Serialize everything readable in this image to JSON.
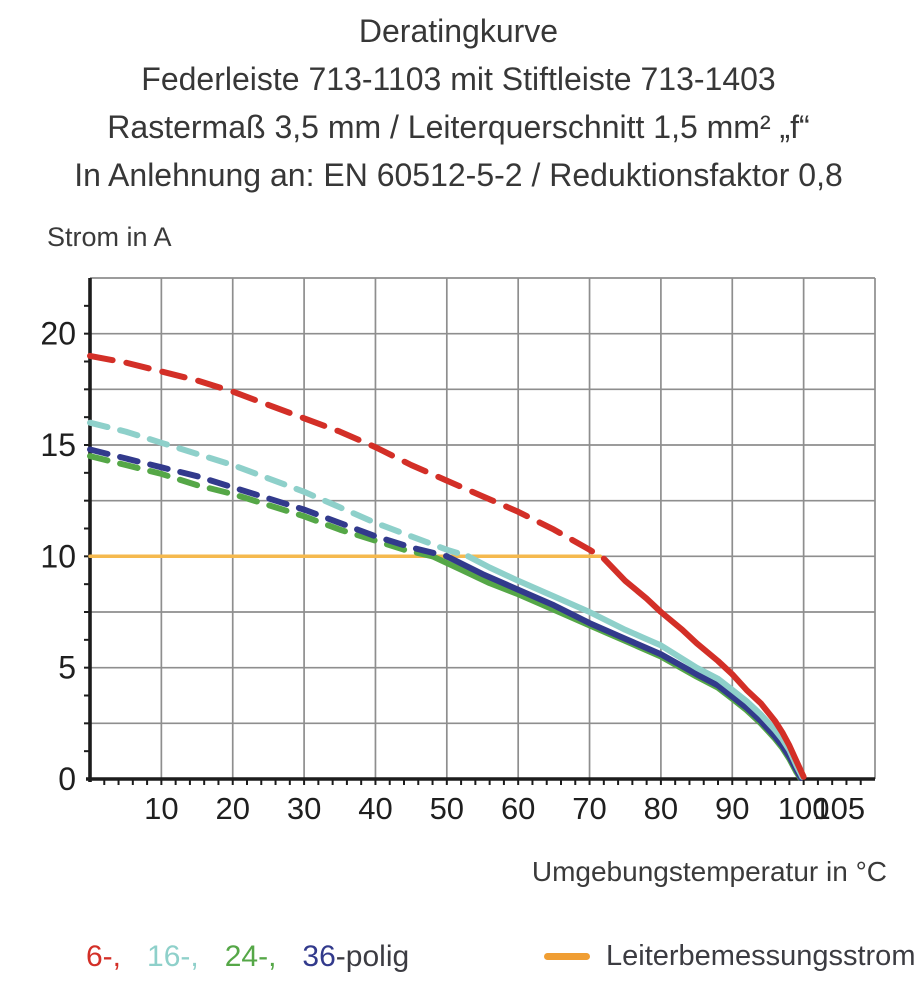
{
  "header": {
    "lines": [
      "Deratingkurve",
      "Federleiste 713-1103 mit Stiftleiste 713-1403",
      "Rastermaß 3,5 mm / Leiterquerschnitt 1,5 mm² „f“",
      "In Anlehnung an: EN 60512-5-2 / Reduktionsfaktor 0,8"
    ]
  },
  "chart_data": {
    "type": "line",
    "title": "Deratingkurve Federleiste 713-1103 mit Stiftleiste 713-1403",
    "xlabel": "Umgebungstemperatur in °C",
    "ylabel": "Strom in A",
    "xlim": [
      0,
      110
    ],
    "ylim": [
      0,
      22.5
    ],
    "grid": "on",
    "colors": {
      "grid": "#8e8e8e",
      "axis": "#1c1c1c",
      "text": "#1f1f1f"
    },
    "axes": {
      "x": {
        "ticks": [
          10,
          20,
          30,
          40,
          50,
          60,
          70,
          80,
          90,
          100,
          105
        ],
        "gridlines": [
          10,
          20,
          30,
          40,
          50,
          60,
          70,
          80,
          90,
          100
        ],
        "minor_step": 2
      },
      "y": {
        "ticks": [
          0,
          5,
          10,
          15,
          20
        ],
        "gridlines": [
          2.5,
          5,
          7.5,
          10,
          12.5,
          15,
          17.5,
          20,
          22.5
        ],
        "minor_step": 1.25
      }
    },
    "series": [
      {
        "name": "Leiterbemessungsstrom",
        "color": "#f5b94e",
        "width": 3.5,
        "dash": "",
        "dashed": [],
        "solid": [
          [
            0,
            10
          ],
          [
            71.5,
            10
          ]
        ]
      },
      {
        "name": "24-polig",
        "color": "#55a747",
        "width": 6,
        "dash": "18 13",
        "dashed": [
          [
            0,
            14.5
          ],
          [
            5,
            14.1
          ],
          [
            10,
            13.7
          ],
          [
            15,
            13.2
          ],
          [
            20,
            12.8
          ],
          [
            25,
            12.3
          ],
          [
            30,
            11.8
          ],
          [
            35,
            11.2
          ],
          [
            40,
            10.7
          ],
          [
            44,
            10.3
          ],
          [
            48,
            10
          ]
        ],
        "solid": [
          [
            48,
            10
          ],
          [
            52,
            9.4
          ],
          [
            56,
            8.8
          ],
          [
            60,
            8.3
          ],
          [
            65,
            7.6
          ],
          [
            70,
            6.9
          ],
          [
            75,
            6.2
          ],
          [
            80,
            5.5
          ],
          [
            85,
            4.6
          ],
          [
            88,
            4.1
          ],
          [
            90,
            3.6
          ],
          [
            92,
            3.1
          ],
          [
            94,
            2.5
          ],
          [
            96,
            1.8
          ],
          [
            97,
            1.4
          ],
          [
            98,
            0.9
          ],
          [
            99,
            0.3
          ],
          [
            99.5,
            0.05
          ]
        ]
      },
      {
        "name": "36-polig",
        "color": "#323a8c",
        "width": 6,
        "dash": "18 13",
        "dashed": [
          [
            0,
            14.8
          ],
          [
            5,
            14.4
          ],
          [
            10,
            14
          ],
          [
            15,
            13.6
          ],
          [
            20,
            13.1
          ],
          [
            25,
            12.6
          ],
          [
            30,
            12.1
          ],
          [
            35,
            11.5
          ],
          [
            40,
            10.9
          ],
          [
            45,
            10.4
          ],
          [
            50,
            10
          ]
        ],
        "solid": [
          [
            50,
            10
          ],
          [
            55,
            9.2
          ],
          [
            60,
            8.5
          ],
          [
            65,
            7.8
          ],
          [
            70,
            7
          ],
          [
            75,
            6.3
          ],
          [
            80,
            5.6
          ],
          [
            85,
            4.7
          ],
          [
            88,
            4.2
          ],
          [
            90,
            3.7
          ],
          [
            92,
            3.2
          ],
          [
            94,
            2.6
          ],
          [
            96,
            1.9
          ],
          [
            97,
            1.5
          ],
          [
            98,
            1
          ],
          [
            99,
            0.4
          ],
          [
            99.6,
            0.05
          ]
        ]
      },
      {
        "name": "16-polig",
        "color": "#8ed0ca",
        "width": 6,
        "dash": "18 13",
        "dashed": [
          [
            0,
            16
          ],
          [
            5,
            15.6
          ],
          [
            10,
            15.1
          ],
          [
            15,
            14.6
          ],
          [
            20,
            14.1
          ],
          [
            25,
            13.5
          ],
          [
            30,
            12.9
          ],
          [
            35,
            12.2
          ],
          [
            40,
            11.5
          ],
          [
            45,
            10.9
          ],
          [
            50,
            10.3
          ],
          [
            53,
            10
          ]
        ],
        "solid": [
          [
            53,
            10
          ],
          [
            56,
            9.5
          ],
          [
            60,
            8.9
          ],
          [
            65,
            8.2
          ],
          [
            70,
            7.5
          ],
          [
            75,
            6.7
          ],
          [
            80,
            6
          ],
          [
            85,
            5
          ],
          [
            88,
            4.5
          ],
          [
            90,
            4
          ],
          [
            92,
            3.5
          ],
          [
            94,
            2.9
          ],
          [
            96,
            2.2
          ],
          [
            97,
            1.8
          ],
          [
            98,
            1.3
          ],
          [
            99,
            0.6
          ],
          [
            99.8,
            0.1
          ]
        ]
      },
      {
        "name": "6-polig",
        "color": "#d32f27",
        "width": 6,
        "dash": "23 14",
        "dashed": [
          [
            0,
            19
          ],
          [
            5,
            18.7
          ],
          [
            10,
            18.3
          ],
          [
            15,
            17.9
          ],
          [
            20,
            17.4
          ],
          [
            25,
            16.8
          ],
          [
            30,
            16.2
          ],
          [
            35,
            15.6
          ],
          [
            40,
            14.9
          ],
          [
            45,
            14.1
          ],
          [
            50,
            13.4
          ],
          [
            55,
            12.7
          ],
          [
            60,
            12
          ],
          [
            65,
            11.2
          ],
          [
            70,
            10.3
          ],
          [
            72,
            9.9
          ]
        ],
        "solid": [
          [
            72,
            9.9
          ],
          [
            75,
            8.9
          ],
          [
            78,
            8.1
          ],
          [
            80,
            7.5
          ],
          [
            83,
            6.7
          ],
          [
            85,
            6.1
          ],
          [
            88,
            5.3
          ],
          [
            90,
            4.7
          ],
          [
            92,
            4
          ],
          [
            94,
            3.4
          ],
          [
            96,
            2.6
          ],
          [
            97,
            2.1
          ],
          [
            98,
            1.5
          ],
          [
            99,
            0.8
          ],
          [
            100,
            0.1
          ]
        ]
      }
    ]
  },
  "legend": {
    "items": [
      {
        "label": "6-,",
        "color": "#d32f27"
      },
      {
        "label": "16-,",
        "color": "#8ed0ca"
      },
      {
        "label": "24-,",
        "color": "#55a747"
      },
      {
        "label": "36",
        "color": "#323a8c"
      }
    ],
    "suffix": "-polig",
    "suffix_color": "#3c3c42",
    "rating_label": "Leiterbemessungsstrom",
    "rating_color": "#f09e33"
  }
}
